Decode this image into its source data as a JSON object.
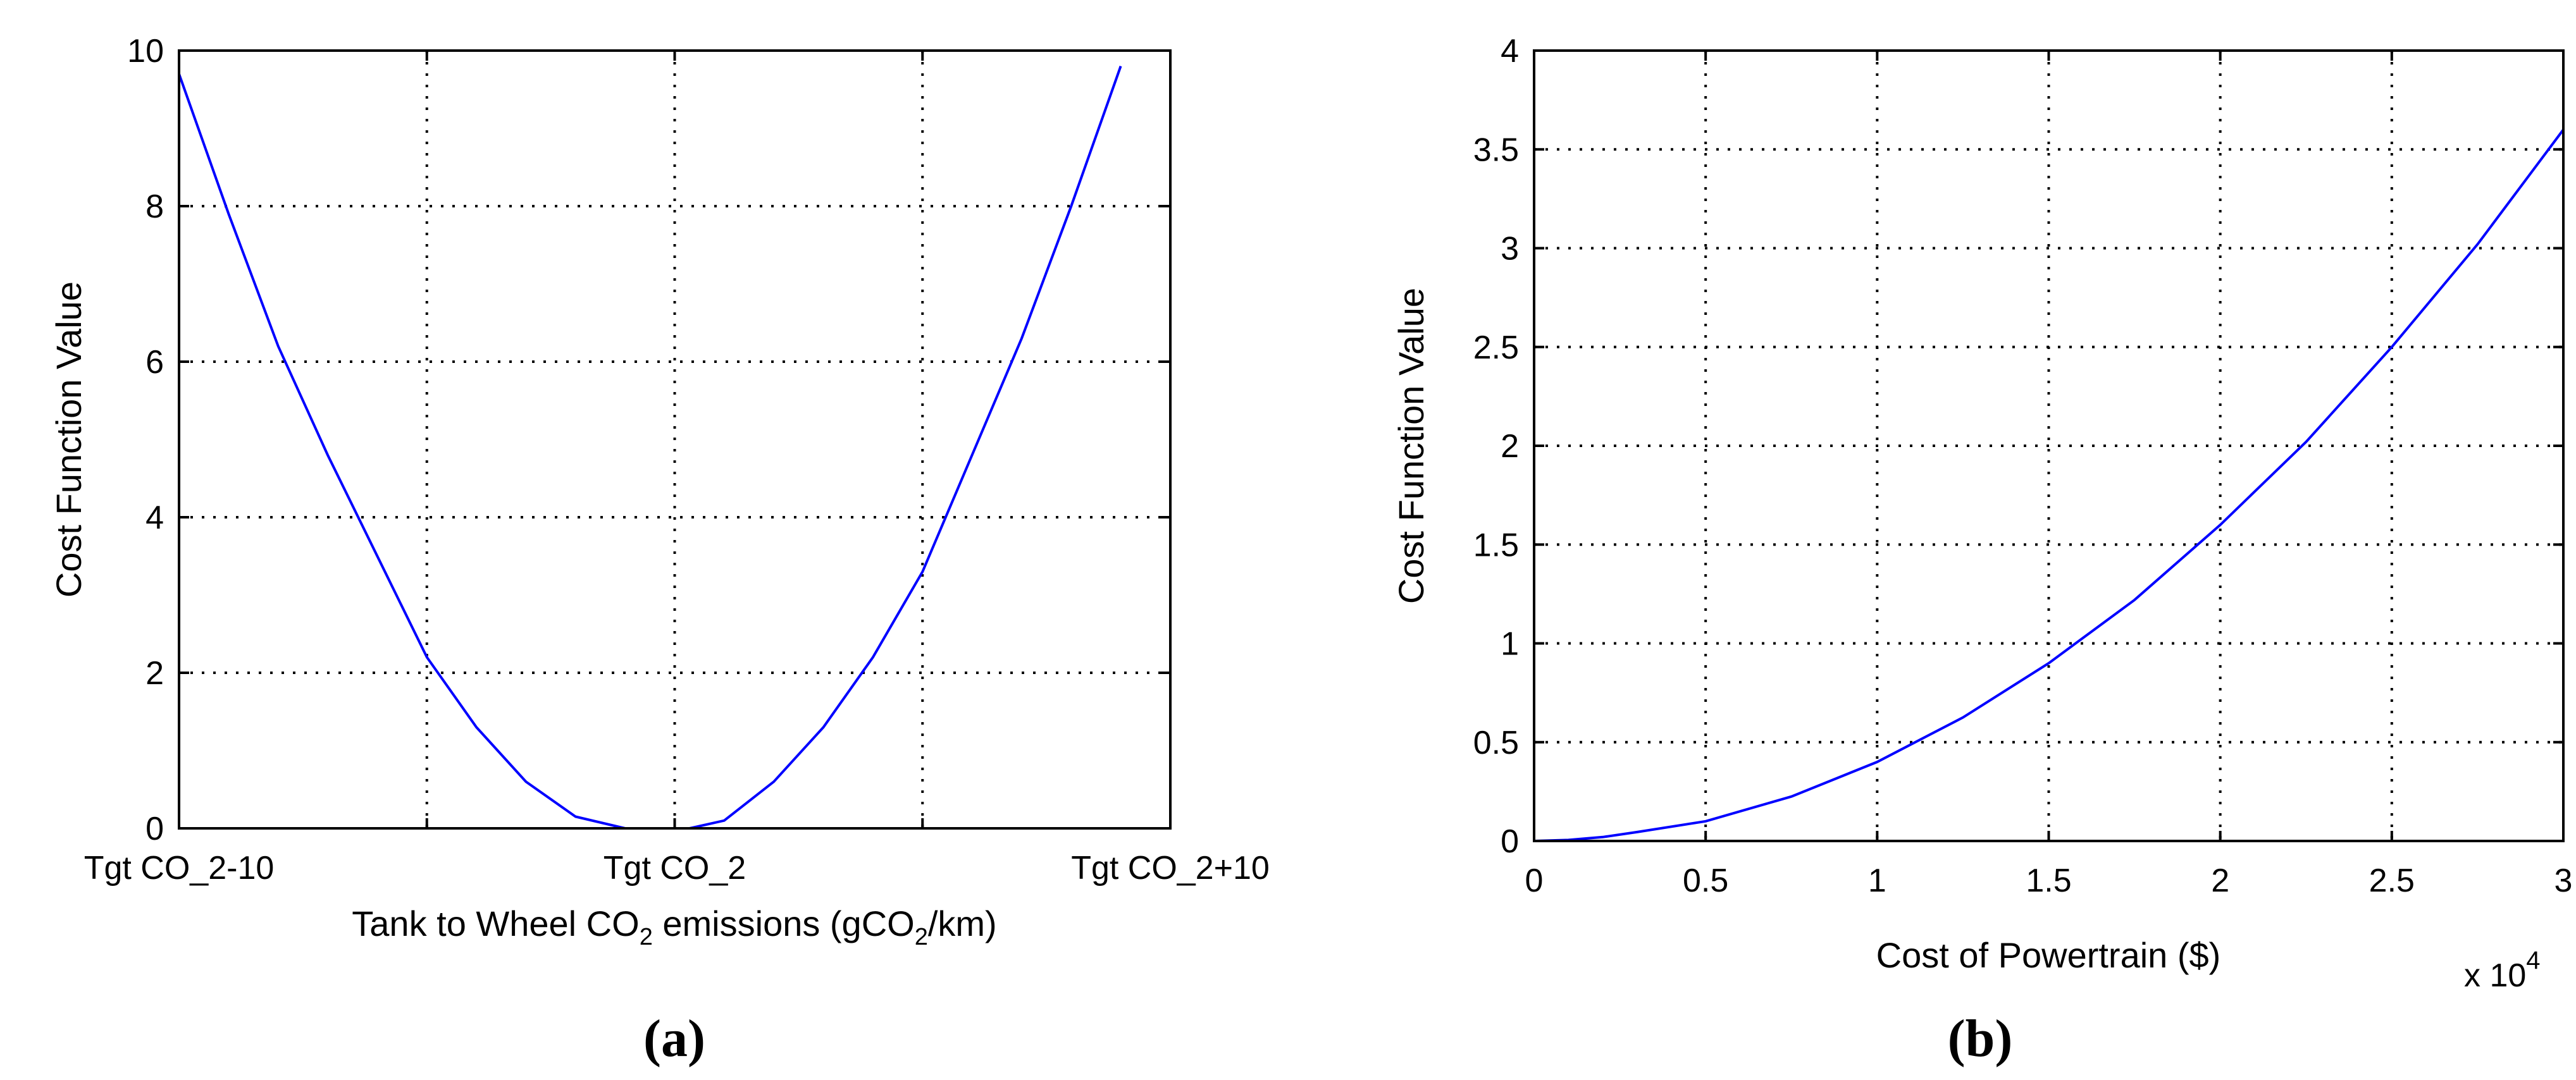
{
  "chart_data": [
    {
      "type": "line",
      "panel_label": "(a)",
      "xlabel": "Tank to Wheel CO2 emissions (gCO2/km)",
      "xlabel_parts": {
        "pre": "Tank to Wheel CO",
        "sub1": "2",
        "mid": " emissions (gCO",
        "sub2": "2",
        "post": "/km)"
      },
      "ylabel": "Cost Function Value",
      "xlim": [
        -10,
        10
      ],
      "ylim": [
        0,
        10
      ],
      "xticks": [
        -10,
        0,
        10
      ],
      "xtick_labels": [
        "Tgt CO_2-10",
        "Tgt CO_2",
        "Tgt CO_2+10"
      ],
      "xgrid": [
        -10,
        -5,
        0,
        5,
        10
      ],
      "yticks": [
        0,
        2,
        4,
        6,
        8,
        10
      ],
      "ytick_labels": [
        "0",
        "2",
        "4",
        "6",
        "8",
        "10"
      ],
      "grid": true,
      "series": [
        {
          "color": "#0000ff",
          "x": [
            -10,
            -9,
            -8,
            -7,
            -6,
            -5,
            -4,
            -3,
            -2,
            -1,
            -0.3,
            0,
            0.3,
            1,
            2,
            3,
            4,
            5,
            6,
            7,
            8,
            9,
            10
          ],
          "y": [
            9.7,
            7.9,
            6.2,
            4.8,
            3.5,
            2.2,
            1.3,
            0.6,
            0.15,
            0,
            0,
            null,
            0,
            0.1,
            0.6,
            1.3,
            2.2,
            3.3,
            4.8,
            6.3,
            8.0,
            9.8,
            null
          ]
        }
      ]
    },
    {
      "type": "line",
      "panel_label": "(b)",
      "xlabel": "Cost of Powertrain ($)",
      "ylabel": "Cost Function Value",
      "x_multiplier": "x 10",
      "x_multiplier_exp": "4",
      "xlim": [
        0,
        3
      ],
      "ylim": [
        0,
        4
      ],
      "xticks": [
        0,
        0.5,
        1,
        1.5,
        2,
        2.5,
        3
      ],
      "xtick_labels": [
        "0",
        "0.5",
        "1",
        "1.5",
        "2",
        "2.5",
        "3"
      ],
      "yticks": [
        0,
        0.5,
        1,
        1.5,
        2,
        2.5,
        3,
        3.5,
        4
      ],
      "ytick_labels": [
        "0",
        "0.5",
        "1",
        "1.5",
        "2",
        "2.5",
        "3",
        "3.5",
        "4"
      ],
      "grid": true,
      "series": [
        {
          "color": "#0000ff",
          "x": [
            0,
            0.1,
            0.2,
            0.3,
            0.5,
            0.75,
            1,
            1.25,
            1.5,
            1.75,
            2,
            2.25,
            2.5,
            2.75,
            3
          ],
          "y": [
            0,
            0.005,
            0.02,
            0.045,
            0.1,
            0.225,
            0.4,
            0.625,
            0.9,
            1.22,
            1.6,
            2.02,
            2.5,
            3.02,
            3.6
          ]
        }
      ]
    }
  ]
}
